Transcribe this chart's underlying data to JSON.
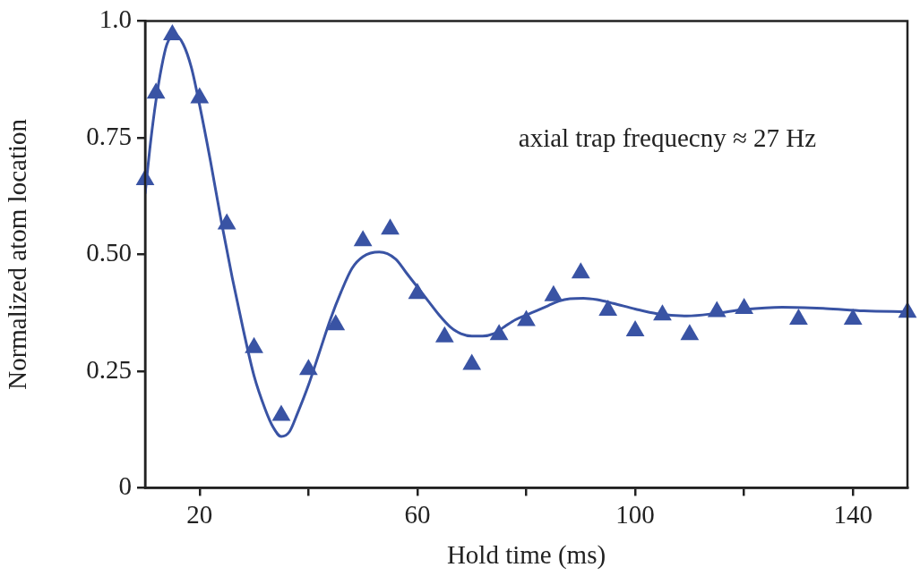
{
  "chart_data": {
    "type": "scatter",
    "xlabel": "Hold time (ms)",
    "ylabel": "Normalized atom location",
    "annotations": [
      "axial trap frequecny ≈ 27 Hz"
    ],
    "xlim": [
      10,
      150
    ],
    "xticks": [
      20,
      {
        "value": 40,
        "label": null
      },
      60,
      {
        "value": 80,
        "label": null
      },
      100,
      {
        "value": 120,
        "label": null
      },
      140
    ],
    "ylim": [
      0,
      1
    ],
    "yticks": [
      0,
      0.25,
      {
        "value": 0.5,
        "label": "0.50"
      },
      0.75,
      {
        "value": 1,
        "label": "1.0"
      }
    ],
    "grid": false,
    "legend": false,
    "marker": "triangle",
    "series": [
      {
        "color": "#3953a4",
        "x": [
          10,
          12,
          15,
          20,
          25,
          30,
          35,
          40,
          45,
          50,
          55,
          60,
          65,
          70,
          75,
          80,
          85,
          90,
          95,
          100,
          105,
          110,
          115,
          120,
          130,
          140,
          150
        ],
        "values": [
          0.66,
          0.845,
          0.97,
          0.835,
          0.565,
          0.3,
          0.155,
          0.253,
          0.349,
          0.529,
          0.554,
          0.416,
          0.323,
          0.264,
          0.328,
          0.358,
          0.411,
          0.46,
          0.38,
          0.336,
          0.37,
          0.328,
          0.377,
          0.384,
          0.361,
          0.361,
          0.376
        ]
      },
      {
        "type": "line",
        "color": "#3953a4",
        "marker": "none",
        "line_style": "solid",
        "x": [
          10,
          11,
          12,
          13,
          14,
          15.5,
          17,
          18.5,
          20,
          22,
          24,
          26,
          28,
          30,
          32,
          33.5,
          35,
          36.5,
          38,
          40,
          42,
          44,
          46,
          48,
          50,
          53,
          56,
          58,
          60,
          62,
          64,
          66,
          68,
          70,
          72,
          74,
          76,
          78,
          80,
          82,
          84,
          86,
          88,
          90.5,
          93,
          96,
          100,
          104,
          109.5,
          115,
          120,
          127,
          135,
          142,
          150
        ],
        "values": [
          0.63,
          0.74,
          0.83,
          0.9,
          0.95,
          0.97,
          0.95,
          0.9,
          0.82,
          0.7,
          0.57,
          0.45,
          0.34,
          0.24,
          0.17,
          0.13,
          0.11,
          0.12,
          0.16,
          0.22,
          0.29,
          0.36,
          0.42,
          0.47,
          0.495,
          0.505,
          0.49,
          0.46,
          0.43,
          0.4,
          0.37,
          0.345,
          0.33,
          0.325,
          0.325,
          0.33,
          0.345,
          0.36,
          0.37,
          0.38,
          0.39,
          0.4,
          0.405,
          0.406,
          0.403,
          0.395,
          0.383,
          0.373,
          0.368,
          0.374,
          0.382,
          0.387,
          0.384,
          0.379,
          0.377
        ]
      }
    ]
  }
}
